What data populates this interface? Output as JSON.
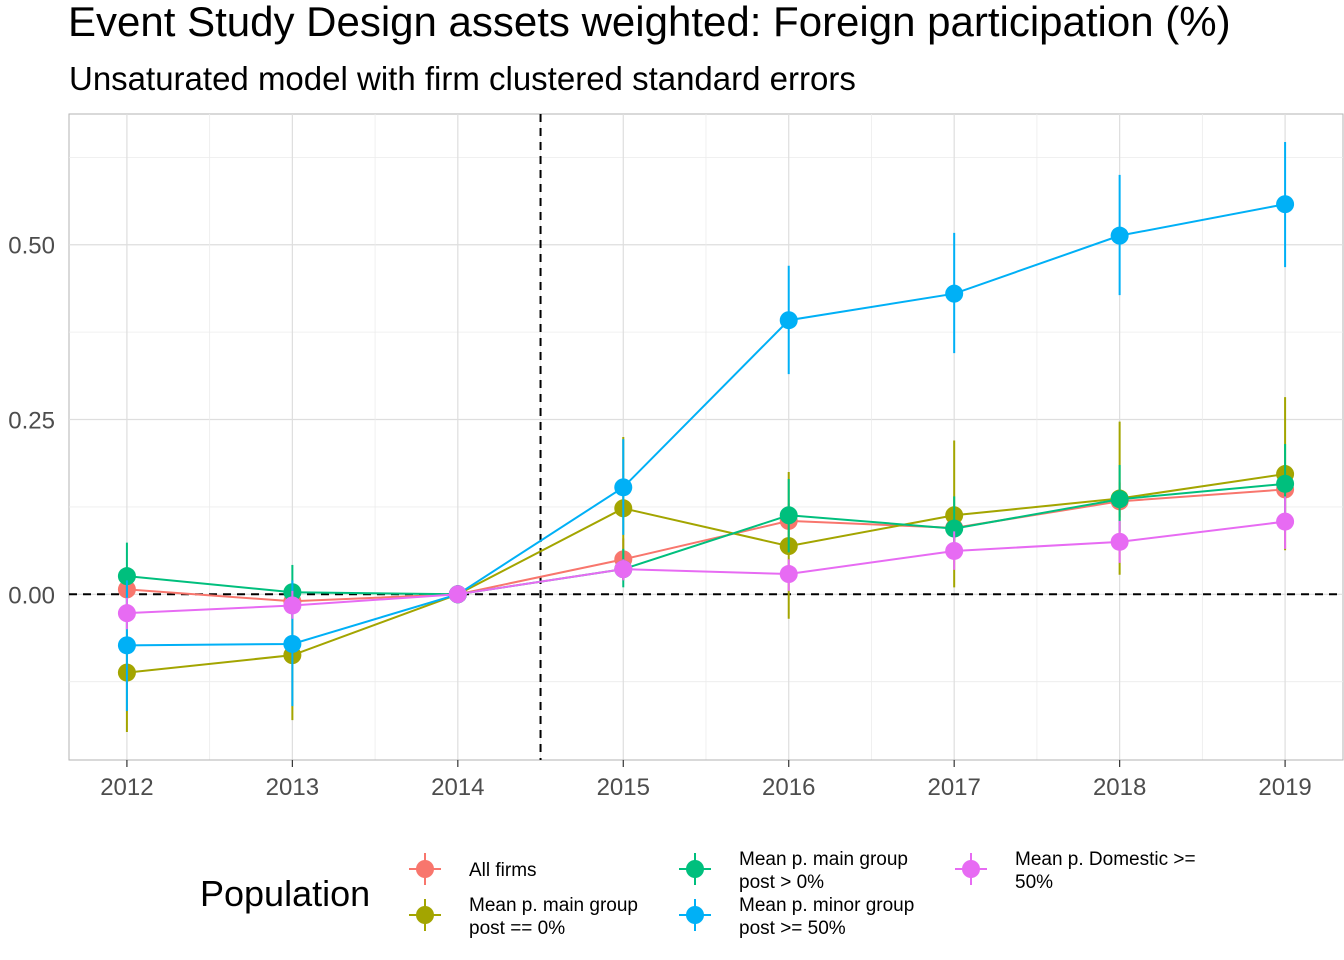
{
  "chart_data": {
    "type": "line",
    "title": "Event Study Design assets weighted: Foreign participation (%)",
    "subtitle": "Unsaturated model with firm clustered standard errors",
    "xlabel": "",
    "ylabel": "",
    "x": [
      2012,
      2013,
      2014,
      2015,
      2016,
      2017,
      2018,
      2019
    ],
    "x_tick_labels": [
      "2012",
      "2013",
      "2014",
      "2015",
      "2016",
      "2017",
      "2018",
      "2019"
    ],
    "y_ticks": [
      0.0,
      0.25,
      0.5
    ],
    "y_tick_labels": [
      "0.00",
      "0.25",
      "0.50"
    ],
    "xlim": [
      2011.65,
      2019.35
    ],
    "ylim": [
      -0.237,
      0.687
    ],
    "grid": true,
    "reference_lines": {
      "vertical_x": 2014.5,
      "horizontal_y": 0.0,
      "style": "dashed"
    },
    "legend": {
      "title": "Population",
      "placement": "bottom"
    },
    "series": [
      {
        "name": "All firms",
        "legend_lines": [
          "All firms"
        ],
        "color": "#F8766D",
        "values": [
          0.007,
          -0.01,
          0.0,
          0.05,
          0.105,
          0.095,
          0.133,
          0.15
        ],
        "ci_low": [
          -0.02,
          -0.03,
          0.0,
          0.02,
          0.08,
          0.07,
          0.11,
          0.12
        ],
        "ci_high": [
          0.03,
          0.01,
          0.0,
          0.08,
          0.13,
          0.12,
          0.16,
          0.18
        ]
      },
      {
        "name": "Mean p. main group post == 0%",
        "legend_lines": [
          "Mean p. main group",
          "post == 0%"
        ],
        "color": "#A3A500",
        "values": [
          -0.112,
          -0.087,
          0.0,
          0.123,
          0.069,
          0.113,
          0.137,
          0.172
        ],
        "ci_low": [
          -0.197,
          -0.18,
          0.0,
          0.02,
          -0.035,
          0.01,
          0.028,
          0.063
        ],
        "ci_high": [
          -0.03,
          0.0,
          0.0,
          0.225,
          0.175,
          0.22,
          0.247,
          0.282
        ]
      },
      {
        "name": "Mean p. main group post > 0%",
        "legend_lines": [
          "Mean p. main group",
          "post > 0%"
        ],
        "color": "#00BF7D",
        "values": [
          0.026,
          0.003,
          0.0,
          0.036,
          0.113,
          0.094,
          0.136,
          0.158
        ],
        "ci_low": [
          -0.02,
          -0.035,
          0.0,
          0.01,
          0.06,
          0.05,
          0.09,
          0.1
        ],
        "ci_high": [
          0.074,
          0.042,
          0.0,
          0.065,
          0.165,
          0.14,
          0.185,
          0.215
        ]
      },
      {
        "name": "Mean p. minor group post >= 50%",
        "legend_lines": [
          "Mean p. minor group",
          "post >= 50%"
        ],
        "color": "#00B0F6",
        "values": [
          -0.073,
          -0.071,
          0.0,
          0.153,
          0.392,
          0.43,
          0.513,
          0.558
        ],
        "ci_low": [
          -0.167,
          -0.16,
          0.0,
          0.085,
          0.315,
          0.345,
          0.428,
          0.468
        ],
        "ci_high": [
          0.02,
          0.02,
          0.0,
          0.222,
          0.47,
          0.517,
          0.6,
          0.647
        ]
      },
      {
        "name": "Mean p. Domestic >= 50%",
        "legend_lines": [
          "Mean p. Domestic >=",
          "50%"
        ],
        "color": "#E76BF3",
        "values": [
          -0.027,
          -0.016,
          0.0,
          0.036,
          0.029,
          0.062,
          0.075,
          0.104
        ],
        "ci_low": [
          -0.05,
          -0.035,
          0.0,
          0.02,
          0.005,
          0.035,
          0.045,
          0.065
        ],
        "ci_high": [
          -0.005,
          0.005,
          0.0,
          0.05,
          0.05,
          0.09,
          0.105,
          0.14
        ]
      }
    ]
  }
}
